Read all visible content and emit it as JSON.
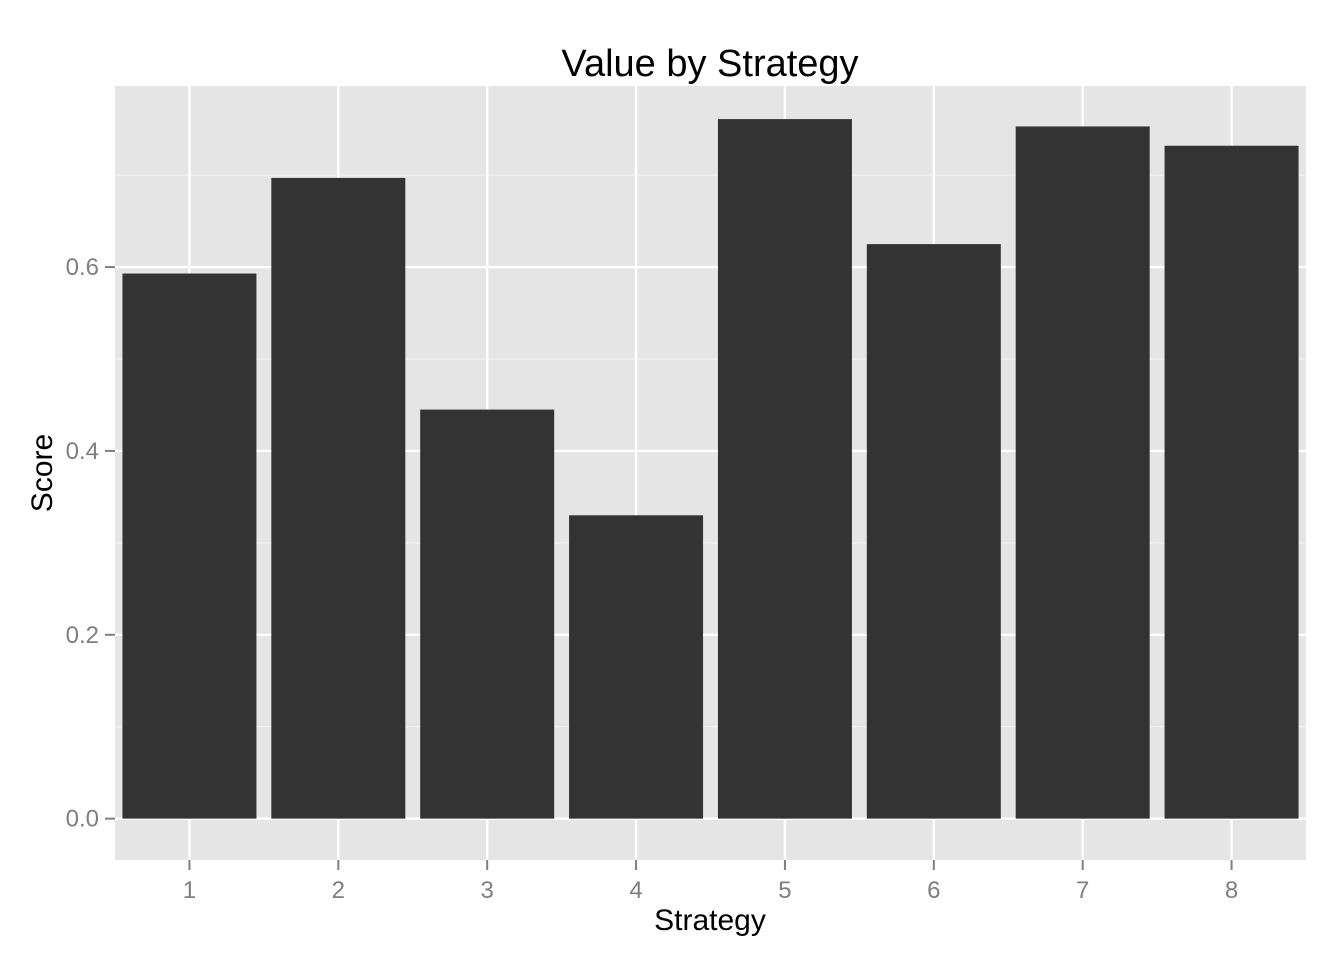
{
  "chart_data": {
    "type": "bar",
    "title": "Value by Strategy",
    "xlabel": "Strategy",
    "ylabel": "Score",
    "categories": [
      "1",
      "2",
      "3",
      "4",
      "5",
      "6",
      "7",
      "8"
    ],
    "values": [
      0.593,
      0.697,
      0.445,
      0.33,
      0.761,
      0.625,
      0.753,
      0.732
    ],
    "ylim": [
      -0.045,
      0.797
    ],
    "yticks": [
      0.0,
      0.2,
      0.4,
      0.6
    ],
    "ytick_labels": [
      "0.0",
      "0.2",
      "0.4",
      "0.6"
    ],
    "grid": true,
    "legend": "none",
    "colors": {
      "bar": "#333333",
      "panel": "#e5e5e5",
      "grid_major": "#ffffff",
      "grid_minor": "#f2f2f2",
      "tick_text": "#7f7f7f"
    }
  }
}
